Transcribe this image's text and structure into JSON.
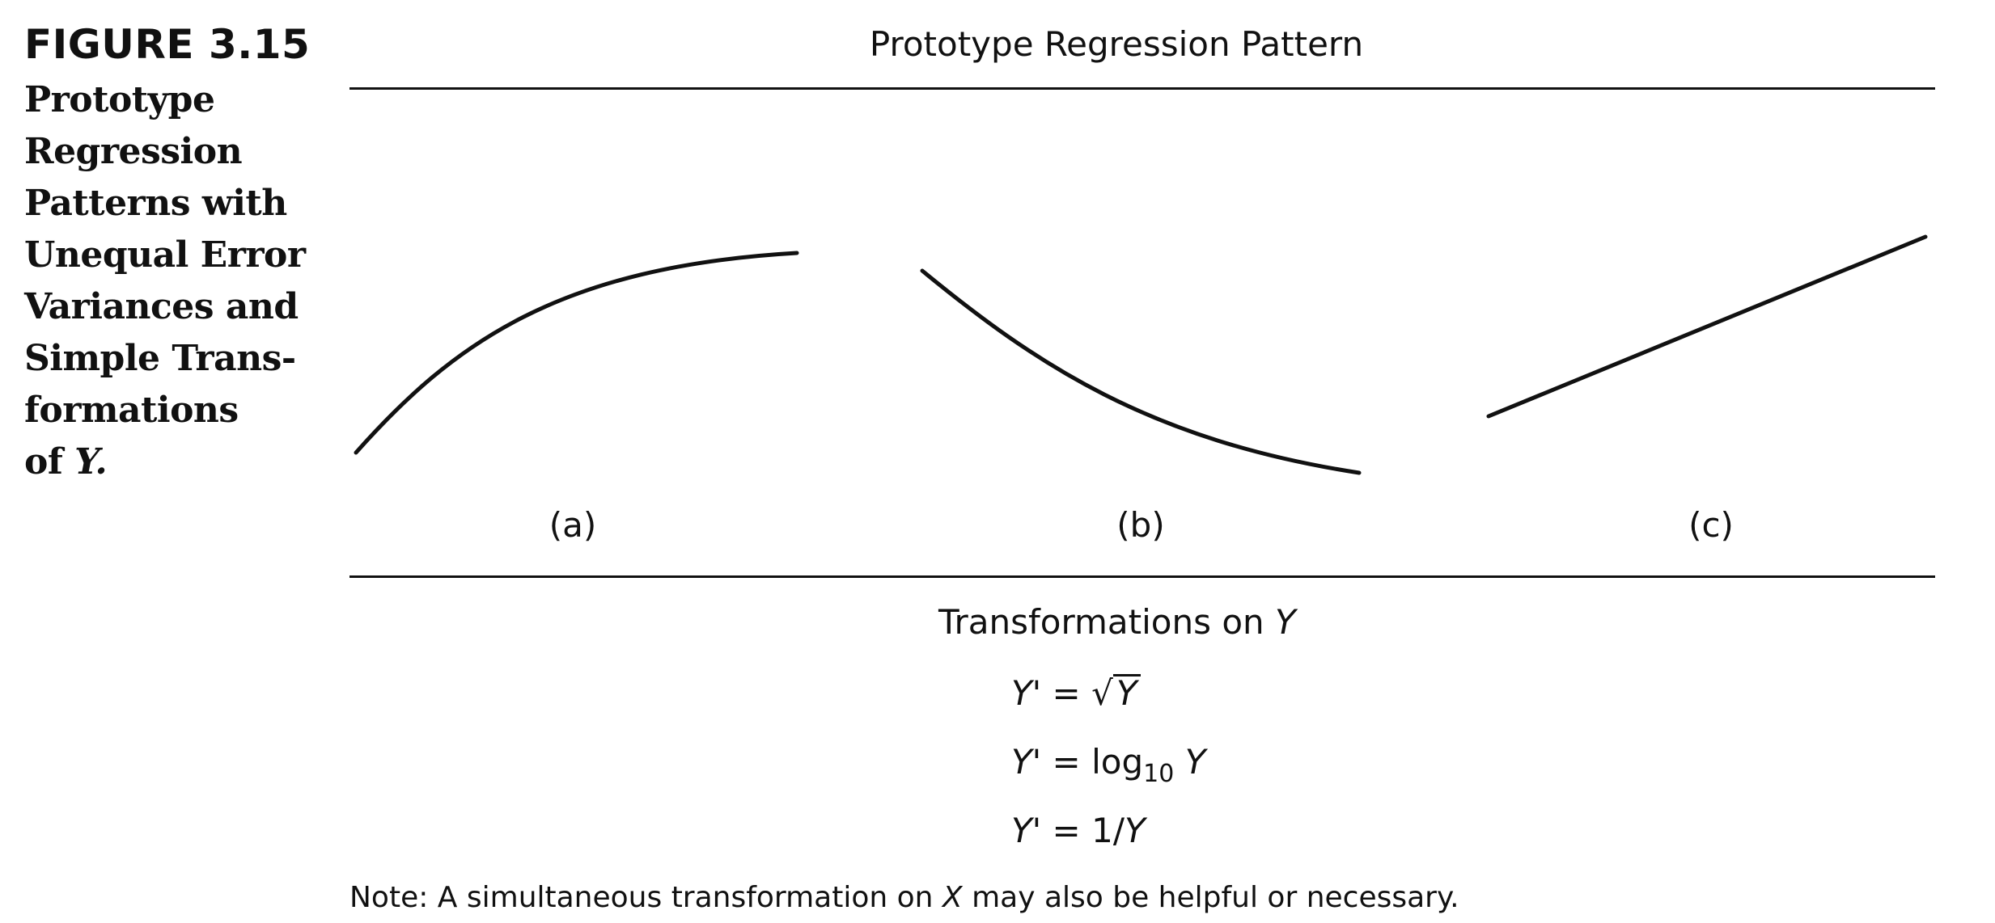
{
  "figure": {
    "label": "FIGURE 3.15",
    "caption_lines": [
      "Prototype",
      "Regression",
      "Patterns with",
      "Unequal Error",
      "Variances and",
      "Simple Trans-",
      "formations"
    ],
    "caption_last_prefix": "of",
    "caption_last_var": "Y."
  },
  "panel": {
    "title": "Prototype Regression Pattern",
    "labels": [
      "(a)",
      "(b)",
      "(c)"
    ]
  },
  "transformations": {
    "heading_text": "Transformations on",
    "heading_var": "Y",
    "formula_1": {
      "lhs": "Y' =",
      "radicand": "Y"
    },
    "formula_2": {
      "lhs": "Y' =",
      "func": "log",
      "subscript": "10",
      "var": "Y"
    },
    "formula_3": {
      "lhs": "Y' =",
      "num": "1/",
      "var": "Y"
    }
  },
  "note": {
    "before": "Note: A simultaneous transformation on",
    "var": "X",
    "after": "may also be helpful or necessary."
  },
  "colors": {
    "ink": "#111111",
    "background": "#ffffff"
  }
}
